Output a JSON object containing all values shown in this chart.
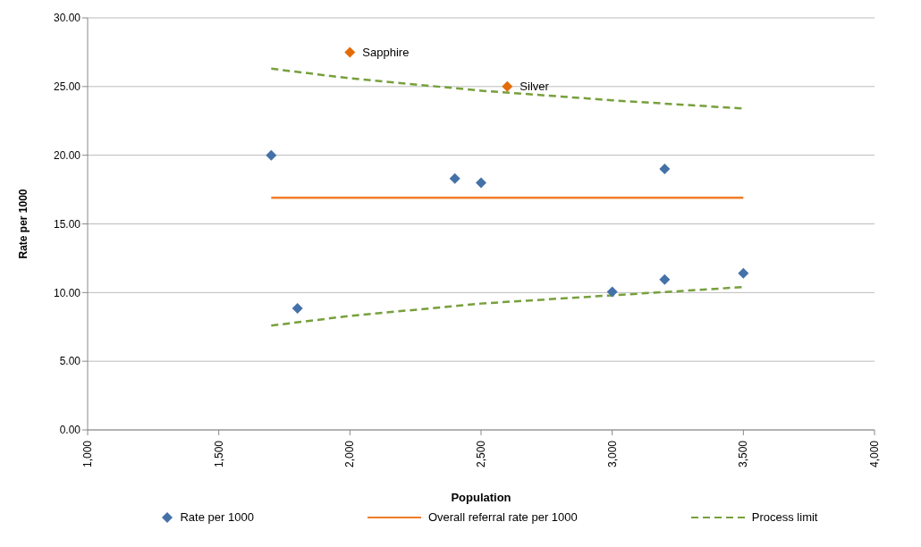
{
  "chart_data": {
    "type": "scatter",
    "xlabel": "Population",
    "ylabel": "Rate per 1000",
    "xlim": [
      1000,
      4000
    ],
    "xticks": [
      {
        "value": 1000,
        "label": "1,000"
      },
      {
        "value": 1500,
        "label": "1,500"
      },
      {
        "value": 2000,
        "label": "2,000"
      },
      {
        "value": 2500,
        "label": "2,500"
      },
      {
        "value": 3000,
        "label": "3,000"
      },
      {
        "value": 3500,
        "label": "3,500"
      },
      {
        "value": 4000,
        "label": "4,000"
      }
    ],
    "ylim": [
      0,
      30
    ],
    "yticks": [
      {
        "value": 0,
        "label": "0.00"
      },
      {
        "value": 5,
        "label": "5.00"
      },
      {
        "value": 10,
        "label": "10.00"
      },
      {
        "value": 15,
        "label": "15.00"
      },
      {
        "value": 20,
        "label": "20.00"
      },
      {
        "value": 25,
        "label": "25.00"
      },
      {
        "value": 30,
        "label": "30.00"
      }
    ],
    "grid": "y",
    "legend": "bottom",
    "marker": "diamond",
    "series": [
      {
        "name": "Rate per 1000",
        "color": "#4472a8",
        "x": [
          1700,
          1800,
          2400,
          2500,
          3000,
          3200,
          3200,
          3500
        ],
        "values": [
          20,
          8.85,
          18.3,
          18,
          10.05,
          10.95,
          19,
          11.4
        ]
      },
      {
        "color": "#e36c0a",
        "x": [
          2000,
          2600
        ],
        "values": [
          27.5,
          25
        ]
      },
      {
        "name": "Overall referral rate per 1000",
        "type": "line",
        "color": "#f07c28",
        "line_style": "solid",
        "marker": "none",
        "x": [
          1700,
          3500
        ],
        "values": [
          16.9,
          16.9
        ]
      },
      {
        "name": "Process limit",
        "type": "line",
        "color": "#77a03c",
        "line_style": "dashed",
        "marker": "none",
        "x": [
          1700,
          2000,
          2500,
          3000,
          3500
        ],
        "values": [
          26.3,
          25.6,
          24.7,
          24,
          23.4
        ]
      },
      {
        "type": "line",
        "color": "#77a03c",
        "line_style": "dashed",
        "marker": "none",
        "x": [
          1700,
          2000,
          2500,
          3000,
          3500
        ],
        "values": [
          7.6,
          8.3,
          9.2,
          9.8,
          10.4
        ]
      }
    ],
    "annotations": [
      {
        "text": "Sapphire",
        "x": 2000,
        "y": 27.5
      },
      {
        "text": "Silver",
        "x": 2600,
        "y": 25
      }
    ]
  }
}
